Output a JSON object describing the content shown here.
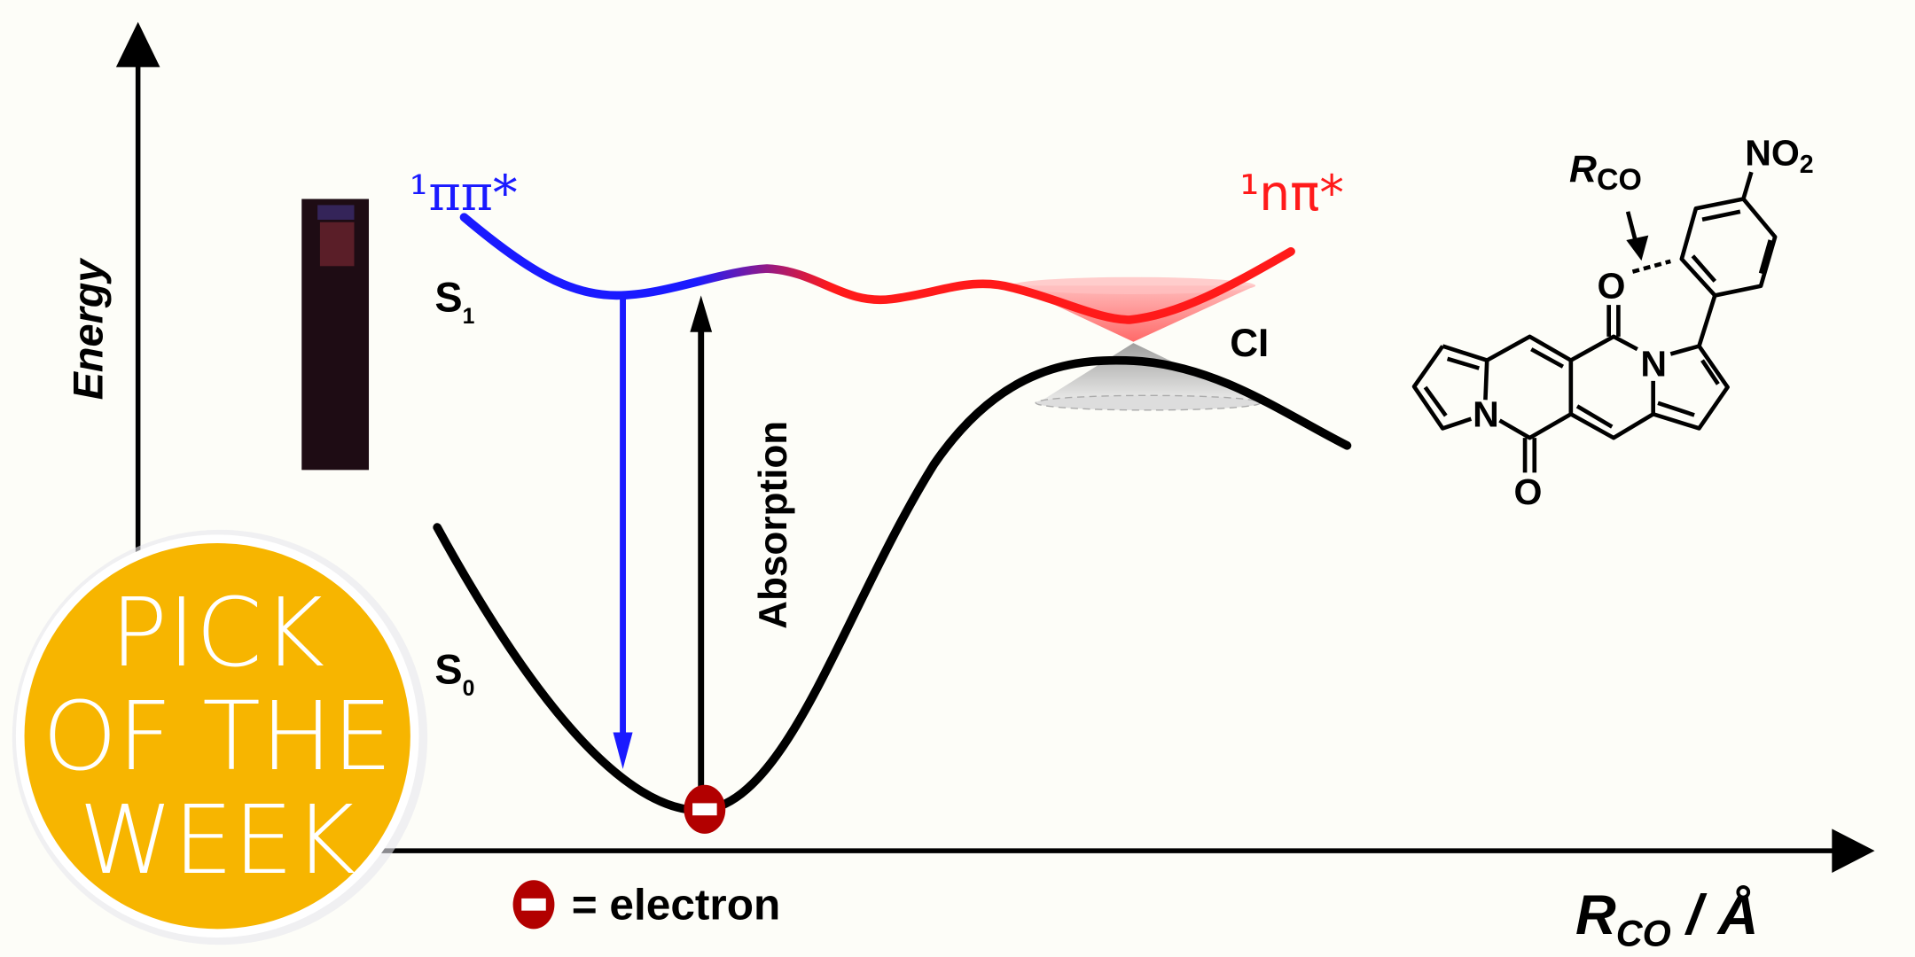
{
  "axes": {
    "y_label": "Energy",
    "x_label_main": "R",
    "x_label_sub": "CO",
    "x_label_unit": " / Å"
  },
  "states": {
    "pipi_label": "¹ππ*",
    "npi_label": "¹nπ*",
    "s1_label": "S",
    "s1_sub": "1",
    "s0_label": "S",
    "s0_sub": "0",
    "ci_label": "CI"
  },
  "transitions": {
    "absorption_label": "Absorption"
  },
  "legend": {
    "electron_label": "= electron"
  },
  "molecule": {
    "rco_main": "R",
    "rco_sub": "CO",
    "no2_main": "NO",
    "no2_sub": "2",
    "atom_n": "N",
    "atom_o": "O"
  },
  "badge": {
    "line1": "PICK",
    "line2": "OF THE",
    "line3": "WEEK"
  },
  "colors": {
    "pipi": "#1a1aff",
    "npi": "#ff1a1a",
    "electron": "#b20000",
    "badge": "#f7b500"
  }
}
